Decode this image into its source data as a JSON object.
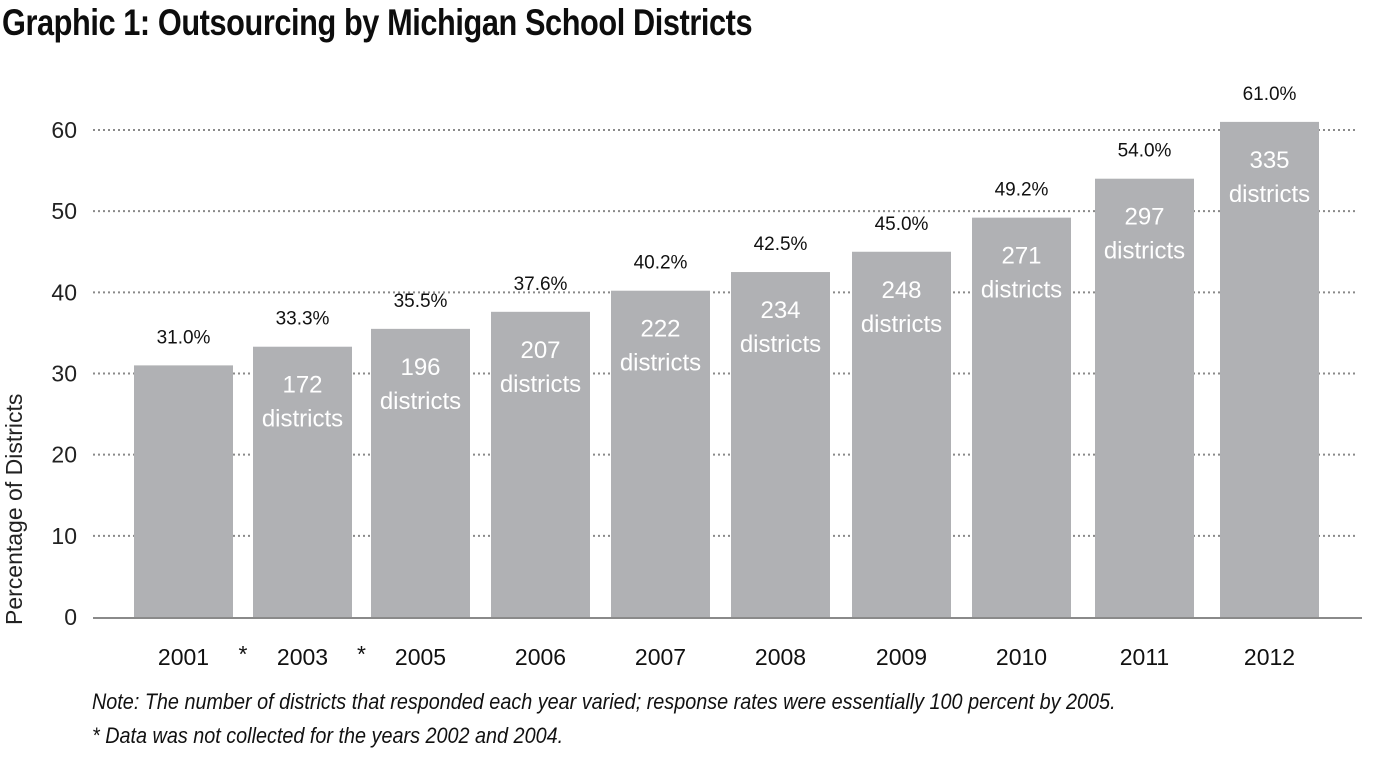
{
  "title": "Graphic 1: Outsourcing by Michigan School Districts",
  "notes": [
    "Note: The number of districts that responded each year varied; response rates were essentially 100 percent by 2005.",
    "* Data was not collected for the years 2002 and 2004."
  ],
  "chart_data": {
    "type": "bar",
    "title": "Graphic 1: Outsourcing by Michigan School Districts",
    "xlabel": "",
    "ylabel": "Percentage of Districts",
    "ylim": [
      0,
      60
    ],
    "yticks": [
      0,
      10,
      20,
      30,
      40,
      50,
      60
    ],
    "grid": true,
    "categories": [
      "2001",
      "2003",
      "2005",
      "2006",
      "2007",
      "2008",
      "2009",
      "2010",
      "2011",
      "2012"
    ],
    "values": [
      31.0,
      33.3,
      35.5,
      37.6,
      40.2,
      42.5,
      45.0,
      49.2,
      54.0,
      61.0
    ],
    "value_labels": [
      "31.0%",
      "33.3%",
      "35.5%",
      "37.6%",
      "40.2%",
      "42.5%",
      "45.0%",
      "49.2%",
      "54.0%",
      "61.0%"
    ],
    "district_counts": [
      null,
      "172",
      "196",
      "207",
      "222",
      "234",
      "248",
      "271",
      "297",
      "335"
    ],
    "district_word": "districts",
    "gap_markers": [
      {
        "between": [
          "2001",
          "2003"
        ],
        "label": "*"
      },
      {
        "between": [
          "2003",
          "2005"
        ],
        "label": "*"
      }
    ]
  }
}
